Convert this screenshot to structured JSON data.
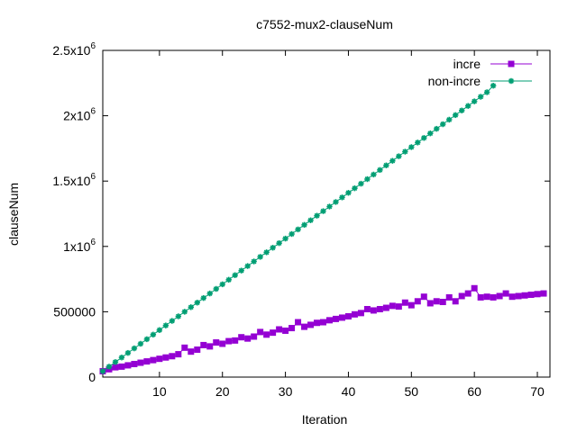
{
  "chart_data": {
    "type": "line",
    "title": "c7552-mux2-clauseNum",
    "xlabel": "Iteration",
    "ylabel": "clauseNum",
    "xlim": [
      1,
      72
    ],
    "ylim": [
      0,
      2500000
    ],
    "xticks": [
      10,
      20,
      30,
      40,
      50,
      60,
      70
    ],
    "yticks": [
      {
        "value": 0,
        "base": "0",
        "exp": ""
      },
      {
        "value": 500000,
        "base": "500000",
        "exp": ""
      },
      {
        "value": 1000000,
        "base": "1x10",
        "exp": "6"
      },
      {
        "value": 1500000,
        "base": "1.5x10",
        "exp": "6"
      },
      {
        "value": 2000000,
        "base": "2x10",
        "exp": "6"
      },
      {
        "value": 2500000,
        "base": "2.5x10",
        "exp": "6"
      }
    ],
    "grid": false,
    "legend_position": "top-right",
    "series": [
      {
        "name": "incre",
        "color": "#9400d3",
        "marker": "square",
        "x": [
          1,
          2,
          3,
          4,
          5,
          6,
          7,
          8,
          9,
          10,
          11,
          12,
          13,
          14,
          15,
          16,
          17,
          18,
          19,
          20,
          21,
          22,
          23,
          24,
          25,
          26,
          27,
          28,
          29,
          30,
          31,
          32,
          33,
          34,
          35,
          36,
          37,
          38,
          39,
          40,
          41,
          42,
          43,
          44,
          45,
          46,
          47,
          48,
          49,
          50,
          51,
          52,
          53,
          54,
          55,
          56,
          57,
          58,
          59,
          60,
          61,
          62,
          63,
          64,
          65,
          66,
          67,
          68,
          69,
          70,
          71
        ],
        "y": [
          45000,
          60000,
          75000,
          80000,
          90000,
          100000,
          110000,
          120000,
          130000,
          140000,
          150000,
          160000,
          175000,
          225000,
          195000,
          210000,
          245000,
          235000,
          265000,
          255000,
          275000,
          280000,
          305000,
          295000,
          310000,
          345000,
          325000,
          340000,
          365000,
          355000,
          375000,
          420000,
          385000,
          400000,
          415000,
          420000,
          435000,
          445000,
          455000,
          465000,
          480000,
          490000,
          520000,
          510000,
          520000,
          530000,
          545000,
          540000,
          570000,
          550000,
          580000,
          615000,
          565000,
          580000,
          575000,
          610000,
          580000,
          620000,
          640000,
          680000,
          610000,
          615000,
          610000,
          620000,
          640000,
          615000,
          620000,
          625000,
          630000,
          635000,
          640000
        ]
      },
      {
        "name": "non-incre",
        "color": "#009e73",
        "marker": "star",
        "x": [
          1,
          2,
          3,
          4,
          5,
          6,
          7,
          8,
          9,
          10,
          11,
          12,
          13,
          14,
          15,
          16,
          17,
          18,
          19,
          20,
          21,
          22,
          23,
          24,
          25,
          26,
          27,
          28,
          29,
          30,
          31,
          32,
          33,
          34,
          35,
          36,
          37,
          38,
          39,
          40,
          41,
          42,
          43,
          44,
          45,
          46,
          47,
          48,
          49,
          50,
          51,
          52,
          53,
          54,
          55,
          56,
          57,
          58,
          59,
          60,
          61,
          62,
          63
        ],
        "y": [
          45000,
          80000,
          115000,
          150000,
          185000,
          220000,
          255000,
          290000,
          325000,
          360000,
          395000,
          430000,
          465000,
          500000,
          535000,
          570000,
          605000,
          640000,
          675000,
          710000,
          745000,
          780000,
          815000,
          850000,
          885000,
          920000,
          955000,
          990000,
          1025000,
          1060000,
          1095000,
          1130000,
          1165000,
          1200000,
          1235000,
          1270000,
          1305000,
          1340000,
          1375000,
          1410000,
          1445000,
          1480000,
          1515000,
          1550000,
          1585000,
          1620000,
          1655000,
          1690000,
          1725000,
          1760000,
          1795000,
          1830000,
          1865000,
          1900000,
          1935000,
          1970000,
          2005000,
          2040000,
          2075000,
          2110000,
          2145000,
          2180000,
          2230000
        ]
      }
    ]
  }
}
